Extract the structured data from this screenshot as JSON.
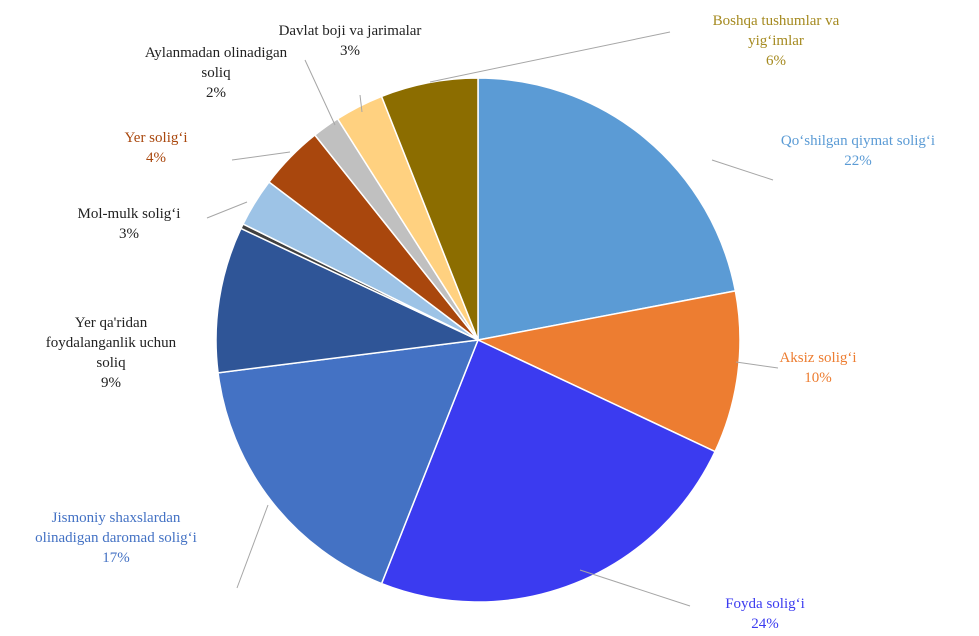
{
  "chart_data": {
    "type": "pie",
    "title": "",
    "slices": [
      {
        "name": "Qo‘shilgan qiymat solig‘i",
        "lines": [
          "Qo‘shilgan qiymat solig‘i"
        ],
        "pct_label": "22%",
        "value": 22,
        "color": "#5b9bd5",
        "label_color": "#5b9bd5"
      },
      {
        "name": "Aksiz solig‘i",
        "lines": [
          "Aksiz solig‘i"
        ],
        "pct_label": "10%",
        "value": 10,
        "color": "#ed7d31",
        "label_color": "#ed7d31"
      },
      {
        "name": "Foyda solig‘i",
        "lines": [
          "Foyda solig‘i"
        ],
        "pct_label": "24%",
        "value": 24,
        "color": "#3b3bf0",
        "label_color": "#3b3bf0"
      },
      {
        "name": "Jismoniy shaxslardan olinadigan daromad solig‘i",
        "lines": [
          "Jismoniy shaxslardan",
          "olinadigan daromad solig‘i"
        ],
        "pct_label": "17%",
        "value": 17,
        "color": "#4472c4",
        "label_color": "#4472c4"
      },
      {
        "name": "Yer qa'ridan foydalanganlik uchun soliq",
        "lines": [
          "Yer qa'ridan",
          "foydalanganlik uchun",
          "soliq"
        ],
        "pct_label": "9%",
        "value": 9,
        "color": "#2f5597",
        "label_color": "#222222"
      },
      {
        "name": "(unlabeled)",
        "lines": [],
        "pct_label": "",
        "value": 0.3,
        "color": "#404040",
        "label_color": "#222222"
      },
      {
        "name": "Mol-mulk solig‘i",
        "lines": [
          "Mol-mulk solig‘i"
        ],
        "pct_label": "3%",
        "value": 3,
        "color": "#9dc3e6",
        "label_color": "#222222"
      },
      {
        "name": "Yer solig‘i",
        "lines": [
          "Yer solig‘i"
        ],
        "pct_label": "4%",
        "value": 4,
        "color": "#a9470d",
        "label_color": "#a9470d"
      },
      {
        "name": "Aylanmadan olinadigan soliq",
        "lines": [
          "Aylanmadan olinadigan",
          "soliq"
        ],
        "pct_label": "2%",
        "value": 1.7,
        "color": "#c0c0c0",
        "label_color": "#222222"
      },
      {
        "name": "Davlat boji va jarimalar",
        "lines": [
          "Davlat boji va jarimalar"
        ],
        "pct_label": "3%",
        "value": 3,
        "color": "#ffd180",
        "label_color": "#222222"
      },
      {
        "name": "Boshqa tushumlar va yig‘imlar",
        "lines": [
          "Boshqa tushumlar va",
          "yig‘imlar"
        ],
        "pct_label": "6%",
        "value": 6,
        "color": "#8c6d00",
        "label_color": "#a58a20"
      }
    ],
    "legend": "none"
  }
}
